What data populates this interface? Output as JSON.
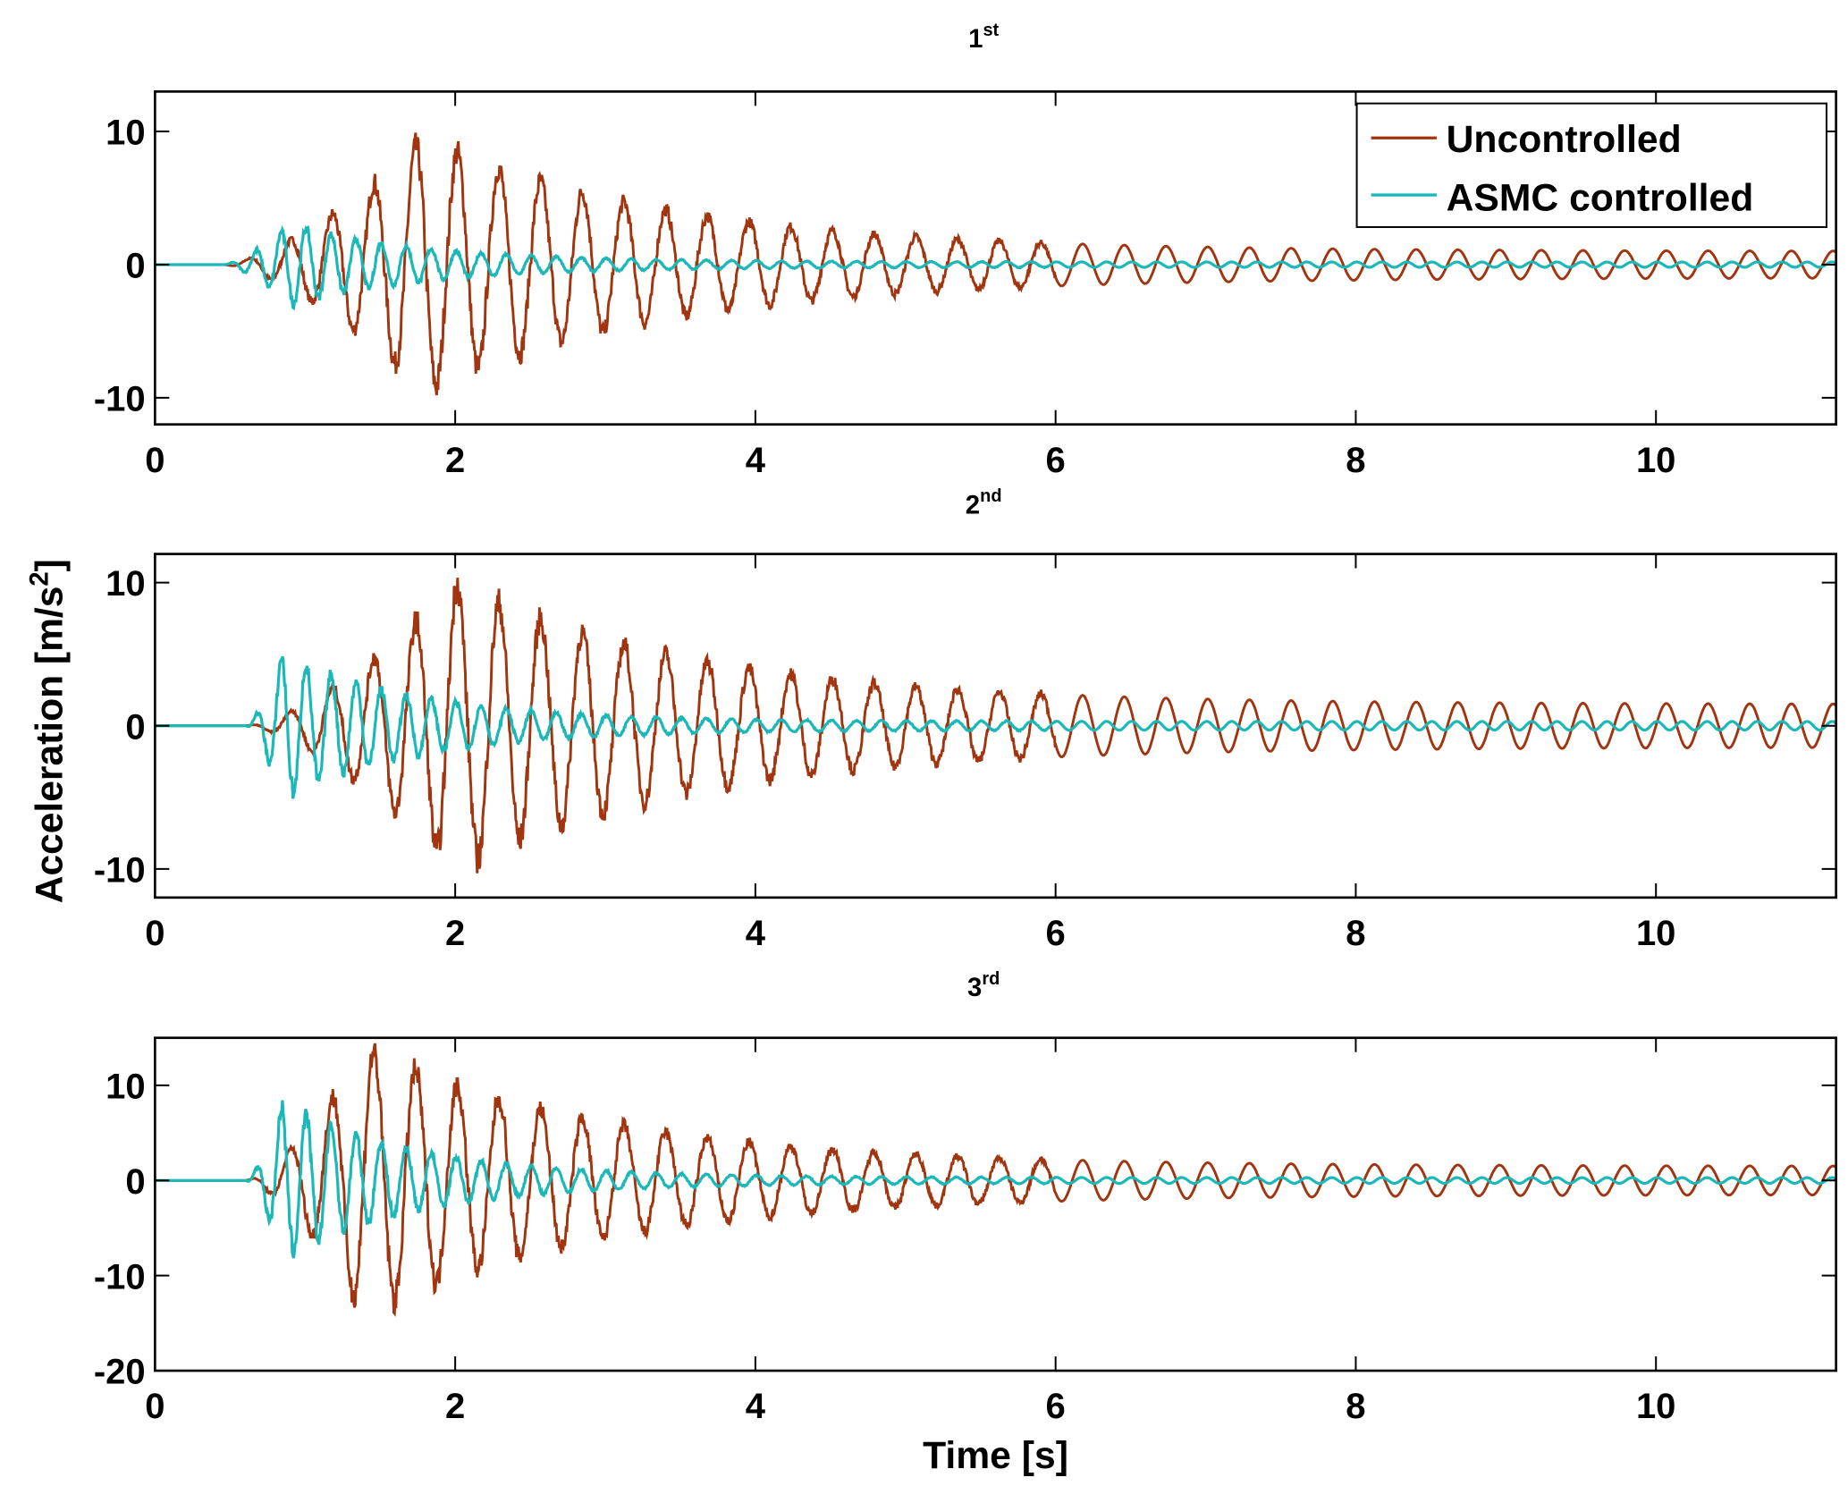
{
  "chart_data": [
    {
      "type": "line",
      "title": "1",
      "title_sup": "st",
      "xlabel": "",
      "ylabel": "Acceleration [m/s2]",
      "xlim": [
        0,
        11.2
      ],
      "ylim": [
        -12,
        13
      ],
      "xticks": [
        0,
        2,
        4,
        6,
        8,
        10
      ],
      "yticks": [
        -10,
        0,
        10
      ],
      "grid": false,
      "legend": "top-right",
      "series": [
        {
          "name": "Uncontrolled",
          "color": "#a0350f",
          "onset": 0.45,
          "peak_time": 1.8,
          "peak": 9.5,
          "decay_to": 1.0,
          "freq": 3.6
        },
        {
          "name": "ASMC controlled",
          "color": "#1ab8b8",
          "onset": 0.45,
          "peak_time": 0.9,
          "peak": 3.0,
          "decay_to": 0.2,
          "freq": 6.0
        }
      ]
    },
    {
      "type": "line",
      "title": "2",
      "title_sup": "nd",
      "xlabel": "",
      "ylabel": "Acceleration [m/s2]",
      "xlim": [
        0,
        11.2
      ],
      "ylim": [
        -12,
        12
      ],
      "xticks": [
        0,
        2,
        4,
        6,
        8,
        10
      ],
      "yticks": [
        -10,
        0,
        10
      ],
      "grid": false,
      "series": [
        {
          "name": "Uncontrolled",
          "color": "#a0350f",
          "onset": 0.6,
          "peak_time": 2.0,
          "peak": 10.0,
          "decay_to": 1.5,
          "freq": 3.6
        },
        {
          "name": "ASMC controlled",
          "color": "#1ab8b8",
          "onset": 0.6,
          "peak_time": 0.85,
          "peak": 5.0,
          "decay_to": 0.3,
          "freq": 6.0
        }
      ]
    },
    {
      "type": "line",
      "title": "3",
      "title_sup": "rd",
      "xlabel": "Time [s]",
      "ylabel": "Acceleration [m/s2]",
      "xlim": [
        0,
        11.2
      ],
      "ylim": [
        -20,
        15
      ],
      "xticks": [
        0,
        2,
        4,
        6,
        8,
        10
      ],
      "yticks": [
        -20,
        -10,
        0,
        10
      ],
      "grid": false,
      "series": [
        {
          "name": "Uncontrolled",
          "color": "#a0350f",
          "onset": 0.6,
          "peak_time": 1.4,
          "peak": 14.0,
          "decay_to": 1.5,
          "freq": 3.6
        },
        {
          "name": "ASMC controlled",
          "color": "#1ab8b8",
          "onset": 0.6,
          "peak_time": 0.85,
          "peak": 8.0,
          "decay_to": 0.3,
          "freq": 6.0
        }
      ]
    }
  ],
  "legend": {
    "items": [
      {
        "label": "Uncontrolled",
        "color": "#a0350f"
      },
      {
        "label": "ASMC controlled",
        "color": "#1ab8b8"
      }
    ]
  },
  "labels": {
    "ylabel_main": "Acceleration [m/s",
    "ylabel_sup": "2",
    "ylabel_end": "]",
    "xlabel": "Time [s]"
  }
}
